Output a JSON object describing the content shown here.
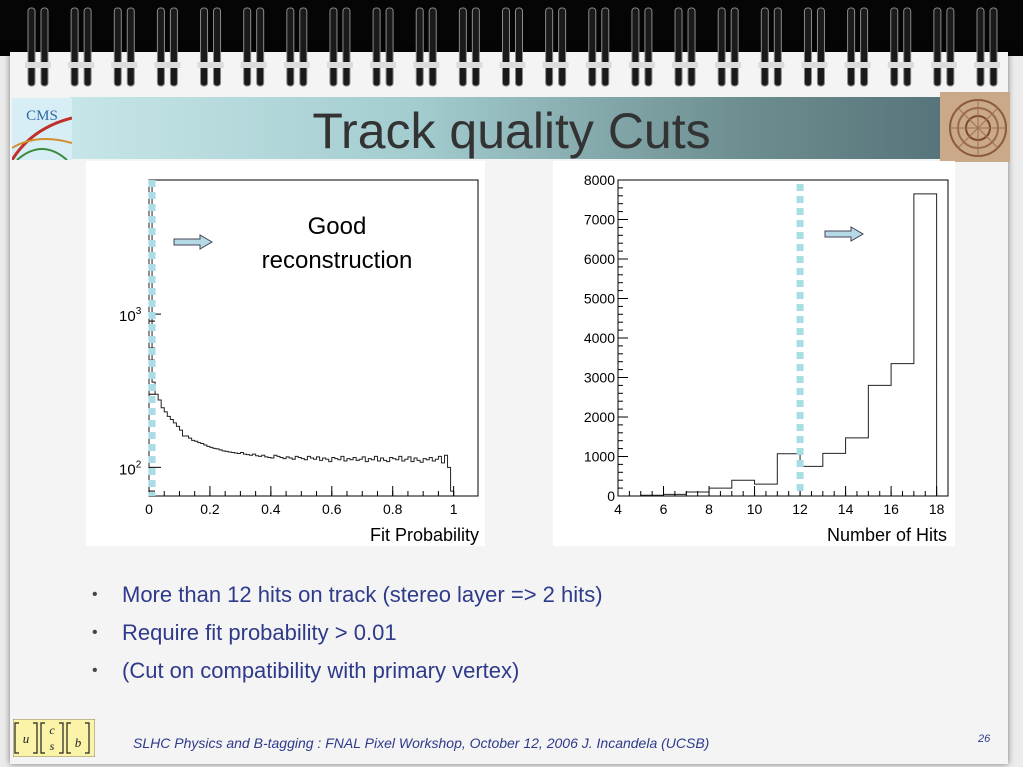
{
  "slide": {
    "title": "Track quality Cuts",
    "footer": "SLHC Physics and B-tagging : FNAL Pixel Workshop, October 12, 2006   J. Incandela (UCSB)",
    "page_number": "26",
    "cms_logo_text": "CMS",
    "bullets": [
      "More than 12 hits on track (stereo layer => 2 hits)",
      "Require fit probability > 0.01",
      "(Cut on compatibility with primary vertex)"
    ],
    "quark_logo": [
      "u",
      "c",
      "s",
      "b"
    ]
  },
  "chart_data": [
    {
      "type": "line",
      "xlabel": "Fit Probability",
      "ylabel": "",
      "yscale": "log",
      "xlim": [
        0,
        1.08
      ],
      "ylim": [
        65,
        7500
      ],
      "xticks": [
        "0",
        "0.2",
        "0.4",
        "0.6",
        "0.8",
        "1"
      ],
      "yticks": [
        {
          "value": 100,
          "base": "10",
          "exp": "2"
        },
        {
          "value": 1000,
          "base": "10",
          "exp": "3"
        }
      ],
      "annotation": [
        "Good",
        "reconstruction"
      ],
      "cut_line_x": 0.01,
      "arrow_direction": "right",
      "bin_width": 0.01,
      "values": [
        7000,
        360,
        300,
        275,
        245,
        230,
        215,
        205,
        195,
        185,
        175,
        160,
        160,
        155,
        150,
        148,
        145,
        143,
        140,
        137,
        135,
        133,
        132,
        130,
        128,
        127,
        126,
        125,
        124,
        123,
        125,
        122,
        121,
        120,
        122,
        119,
        118,
        120,
        117,
        116,
        115,
        120,
        118,
        116,
        114,
        117,
        115,
        113,
        118,
        116,
        114,
        112,
        118,
        115,
        113,
        117,
        111,
        115,
        113,
        109,
        116,
        114,
        112,
        118,
        110,
        114,
        112,
        116,
        111,
        113,
        117,
        109,
        114,
        112,
        118,
        110,
        115,
        111,
        109,
        116,
        114,
        112,
        118,
        110,
        113,
        117,
        109,
        115,
        111,
        108,
        114,
        112,
        116,
        110,
        113,
        118,
        107,
        120,
        100,
        70
      ]
    },
    {
      "type": "bar",
      "xlabel": "Number of Hits",
      "ylabel": "",
      "xlim": [
        4,
        18.5
      ],
      "ylim": [
        0,
        8000
      ],
      "xticks": [
        "4",
        "6",
        "8",
        "10",
        "12",
        "14",
        "16",
        "18"
      ],
      "yticks": [
        "0",
        "1000",
        "2000",
        "3000",
        "4000",
        "5000",
        "6000",
        "7000",
        "8000"
      ],
      "cut_line_x": 12,
      "arrow_direction": "right",
      "bins": [
        {
          "x": [
            5,
            6
          ],
          "y": 20
        },
        {
          "x": [
            6,
            7
          ],
          "y": 40
        },
        {
          "x": [
            7,
            8
          ],
          "y": 100
        },
        {
          "x": [
            8,
            9
          ],
          "y": 200
        },
        {
          "x": [
            9,
            10
          ],
          "y": 400
        },
        {
          "x": [
            10,
            11
          ],
          "y": 300
        },
        {
          "x": [
            11,
            12
          ],
          "y": 1070
        },
        {
          "x": [
            12,
            13
          ],
          "y": 750
        },
        {
          "x": [
            13,
            14
          ],
          "y": 1080
        },
        {
          "x": [
            14,
            15
          ],
          "y": 1470
        },
        {
          "x": [
            15,
            16
          ],
          "y": 2800
        },
        {
          "x": [
            16,
            17
          ],
          "y": 3350
        },
        {
          "x": [
            17,
            18
          ],
          "y": 7650
        }
      ]
    }
  ]
}
